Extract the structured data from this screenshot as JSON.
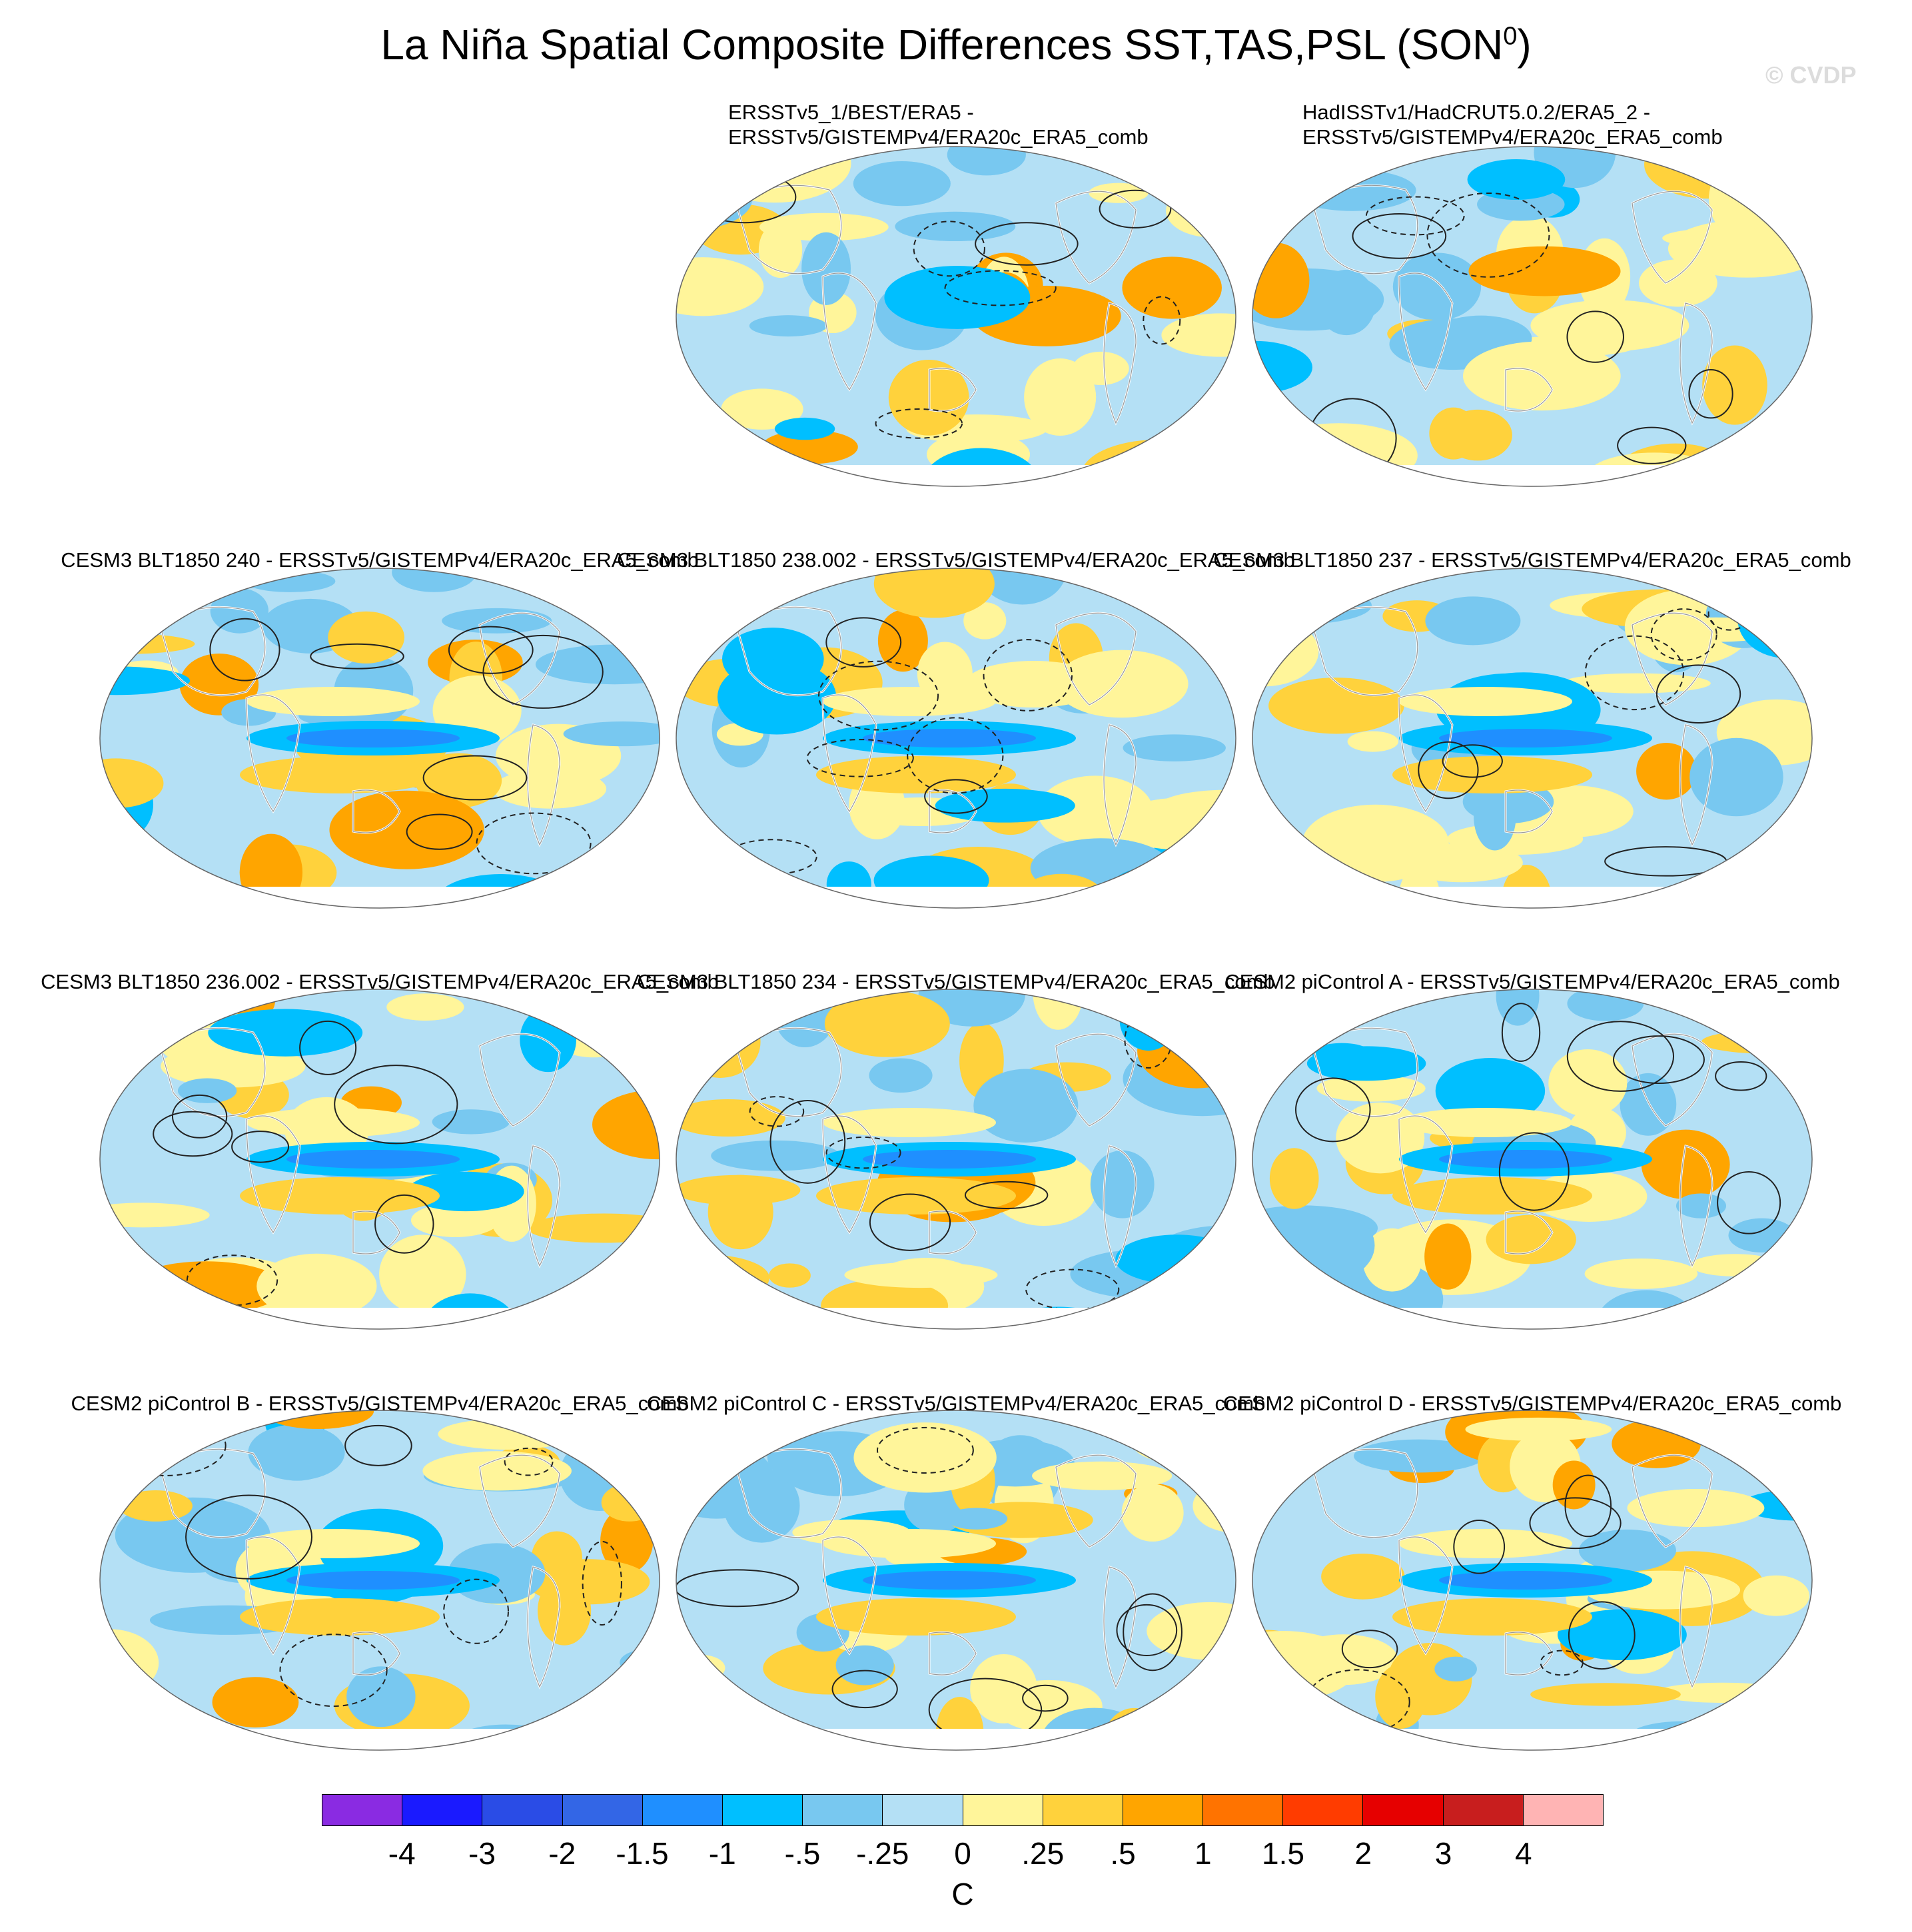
{
  "figure": {
    "title_main": "La Niña Spatial Composite Differences SST,TAS,PSL (SON",
    "title_sup": "0",
    "title_close": ")",
    "watermark": "© CVDP"
  },
  "chart_data": {
    "type": "heatmap",
    "description_units": "C",
    "colorbar": {
      "levels": [
        "-4",
        "-3",
        "-2",
        "-1.5",
        "-1",
        "-.5",
        "-.25",
        "0",
        ".25",
        ".5",
        "1",
        "1.5",
        "2",
        "3",
        "4"
      ],
      "colors": [
        "#8a2be2",
        "#1a1aff",
        "#2a4ce6",
        "#3366e6",
        "#1f8fff",
        "#00bfff",
        "#78c8f0",
        "#b4e0f5",
        "#fff59a",
        "#ffd23c",
        "#ffa500",
        "#ff7300",
        "#ff3c00",
        "#e60000",
        "#c81e1e",
        "#ffb4b4"
      ],
      "label": "C"
    },
    "panels": [
      {
        "title_line1": "ERSSTv5_1/BEST/ERA5 -",
        "title_line2": "ERSSTv5/GISTEMPv4/ERA20c_ERA5_comb"
      },
      {
        "title_line1": "HadISSTv1/HadCRUT5.0.2/ERA5_2 -",
        "title_line2": "ERSSTv5/GISTEMPv4/ERA20c_ERA5_comb"
      },
      {
        "title_line1": "CESM3 BLT1850 240 - ERSSTv5/GISTEMPv4/ERA20c_ERA5_comb"
      },
      {
        "title_line1": "CESM3 BLT1850 238.002 - ERSSTv5/GISTEMPv4/ERA20c_ERA5_comb"
      },
      {
        "title_line1": "CESM3 BLT1850 237 - ERSSTv5/GISTEMPv4/ERA20c_ERA5_comb"
      },
      {
        "title_line1": "CESM3 BLT1850 236.002 - ERSSTv5/GISTEMPv4/ERA20c_ERA5_comb"
      },
      {
        "title_line1": "CESM3 BLT1850 234 - ERSSTv5/GISTEMPv4/ERA20c_ERA5_comb"
      },
      {
        "title_line1": "CESM2 piControl A - ERSSTv5/GISTEMPv4/ERA20c_ERA5_comb"
      },
      {
        "title_line1": "CESM2 piControl B - ERSSTv5/GISTEMPv4/ERA20c_ERA5_comb"
      },
      {
        "title_line1": "CESM2 piControl C - ERSSTv5/GISTEMPv4/ERA20c_ERA5_comb"
      },
      {
        "title_line1": "CESM2 piControl D - ERSSTv5/GISTEMPv4/ERA20c_ERA5_comb"
      }
    ]
  }
}
